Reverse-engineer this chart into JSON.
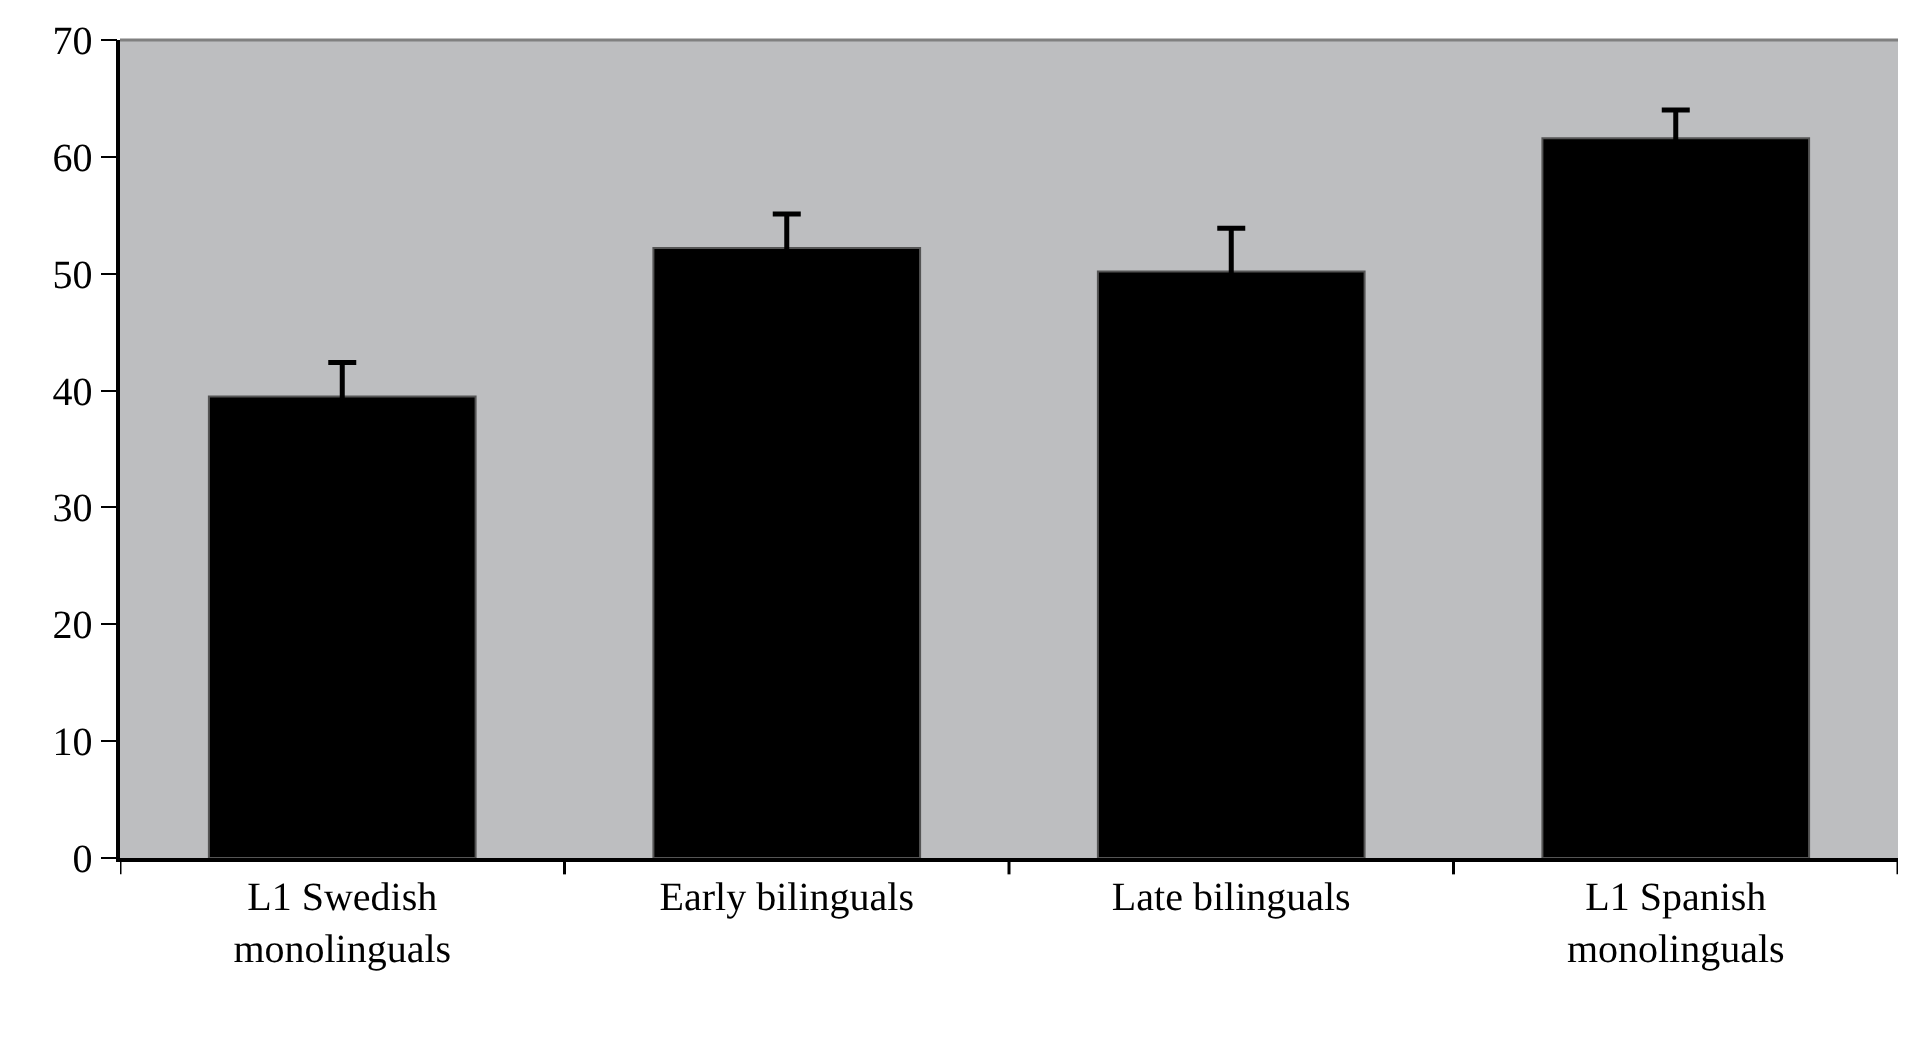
{
  "chart_data": {
    "type": "bar",
    "categories": [
      "L1 Swedish\nmonolinguals",
      "Early bilinguals",
      "Late bilinguals",
      "L1 Spanish\nmonolinguals"
    ],
    "values": [
      39.5,
      52.2,
      50.2,
      61.6
    ],
    "errors": [
      2.9,
      2.9,
      3.7,
      2.4
    ],
    "color": "#000000",
    "ylim": [
      0,
      70
    ],
    "yticks": [
      0,
      10,
      20,
      30,
      40,
      50,
      60,
      70
    ],
    "grid": false
  }
}
